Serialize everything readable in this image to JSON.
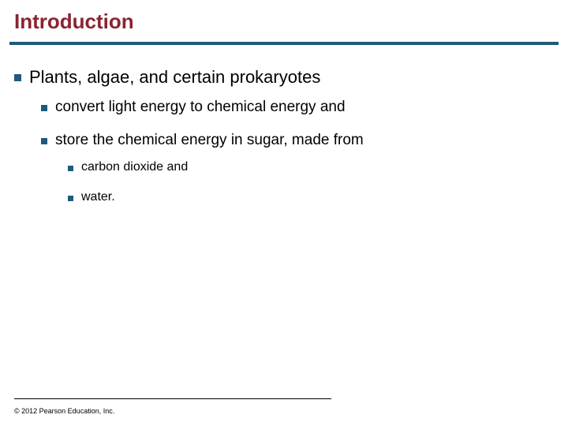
{
  "title": "Introduction",
  "colors": {
    "title_color": "#8b2332",
    "rule_color": "#1f5a7a",
    "bullet_color": "#1f5a7a",
    "text_color": "#000000",
    "background": "#ffffff"
  },
  "typography": {
    "title_fontsize": 26,
    "lvl1_fontsize": 22,
    "lvl2_fontsize": 19,
    "lvl3_fontsize": 16,
    "footer_fontsize": 9,
    "font_family": "Verdana"
  },
  "bullets": {
    "lvl1": {
      "text": "Plants, algae, and certain prokaryotes",
      "children": [
        {
          "text": "convert light energy to chemical energy and"
        },
        {
          "text": "store the chemical energy in sugar, made from",
          "children": [
            {
              "text": "carbon dioxide and"
            },
            {
              "text": "water."
            }
          ]
        }
      ]
    }
  },
  "footer": "© 2012 Pearson Education, Inc."
}
